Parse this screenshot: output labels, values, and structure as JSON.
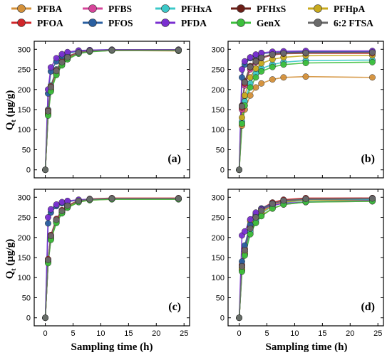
{
  "chart_data": {
    "type": "scatter",
    "xlabel": "Sampling time (h)",
    "ylabel": "Q",
    "ylabel_sub": "t",
    "ylabel_unit": " (µg/g)",
    "xlim": [
      -2,
      26
    ],
    "ylim": [
      -20,
      320
    ],
    "x_ticks": [
      0,
      5,
      10,
      15,
      20,
      25
    ],
    "y_ticks": [
      0,
      50,
      100,
      150,
      200,
      250,
      300
    ],
    "x_tick_labels": [
      "0",
      "5",
      "10",
      "15",
      "20",
      "25"
    ],
    "y_tick_labels": [
      "0",
      "50",
      "100",
      "150",
      "200",
      "250",
      "300"
    ],
    "x": [
      0,
      0.5,
      1,
      2,
      3,
      4,
      6,
      8,
      12,
      24
    ],
    "legend": {
      "placement": "top",
      "entries": [
        {
          "name": "PFBA",
          "color": "#d4913a"
        },
        {
          "name": "PFBS",
          "color": "#d6459a"
        },
        {
          "name": "PFHxA",
          "color": "#3cc8c8"
        },
        {
          "name": "PFHxS",
          "color": "#6b1e16"
        },
        {
          "name": "PFHpA",
          "color": "#c8aa1e"
        },
        {
          "name": "PFOA",
          "color": "#d0262a"
        },
        {
          "name": "PFOS",
          "color": "#2a5fa0"
        },
        {
          "name": "PFDA",
          "color": "#7a2fd0"
        },
        {
          "name": "GenX",
          "color": "#3cbf3c"
        },
        {
          "name": "6:2 FTSA",
          "color": "#6a6a6a"
        }
      ]
    },
    "panels": [
      {
        "label": "(a)",
        "series": [
          {
            "name": "PFBA",
            "values": [
              0,
              140,
              200,
              240,
              265,
              278,
              290,
              295,
              297,
              296
            ]
          },
          {
            "name": "PFBS",
            "values": [
              0,
              145,
              205,
              245,
              268,
              280,
              292,
              296,
              298,
              298
            ]
          },
          {
            "name": "PFHxA",
            "values": [
              0,
              150,
              210,
              250,
              270,
              283,
              293,
              297,
              299,
              299
            ]
          },
          {
            "name": "PFHxS",
            "values": [
              0,
              138,
              198,
              238,
              263,
              277,
              290,
              295,
              297,
              298
            ]
          },
          {
            "name": "PFHpA",
            "values": [
              0,
              142,
              202,
              242,
              266,
              279,
              291,
              295,
              297,
              297
            ]
          },
          {
            "name": "PFOA",
            "values": [
              0,
              148,
              208,
              248,
              270,
              282,
              293,
              297,
              299,
              299
            ]
          },
          {
            "name": "PFOS",
            "values": [
              0,
              190,
              245,
              270,
              283,
              290,
              296,
              298,
              299,
              299
            ]
          },
          {
            "name": "PFDA",
            "values": [
              0,
              200,
              255,
              278,
              288,
              293,
              297,
              298,
              299,
              299
            ]
          },
          {
            "name": "GenX",
            "values": [
              0,
              135,
              195,
              236,
              260,
              275,
              289,
              294,
              297,
              297
            ]
          },
          {
            "name": "6:2 FTSA",
            "values": [
              0,
              146,
              206,
              246,
              268,
              280,
              292,
              296,
              298,
              298
            ]
          }
        ]
      },
      {
        "label": "(b)",
        "series": [
          {
            "name": "PFBA",
            "values": [
              0,
              110,
              150,
              185,
              205,
              215,
              225,
              230,
              232,
              230
            ]
          },
          {
            "name": "PFBS",
            "values": [
              0,
              150,
              210,
              250,
              268,
              278,
              288,
              292,
              294,
              294
            ]
          },
          {
            "name": "PFHxA",
            "values": [
              0,
              120,
              170,
              215,
              240,
              252,
              262,
              268,
              272,
              273
            ]
          },
          {
            "name": "PFHxS",
            "values": [
              0,
              160,
              220,
              258,
              272,
              280,
              288,
              291,
              292,
              292
            ]
          },
          {
            "name": "PFHpA",
            "values": [
              0,
              130,
              185,
              230,
              252,
              265,
              275,
              280,
              284,
              285
            ]
          },
          {
            "name": "PFOA",
            "values": [
              0,
              155,
              215,
              255,
              270,
              278,
              286,
              289,
              290,
              290
            ]
          },
          {
            "name": "PFOS",
            "values": [
              0,
              230,
              262,
              278,
              285,
              289,
              292,
              293,
              294,
              294
            ]
          },
          {
            "name": "PFDA",
            "values": [
              0,
              250,
              270,
              280,
              287,
              291,
              294,
              295,
              296,
              296
            ]
          },
          {
            "name": "GenX",
            "values": [
              0,
              115,
              160,
              205,
              230,
              245,
              256,
              262,
              266,
              268
            ]
          },
          {
            "name": "6:2 FTSA",
            "values": [
              0,
              158,
              218,
              256,
              270,
              279,
              287,
              290,
              291,
              292
            ]
          }
        ]
      },
      {
        "label": "(c)",
        "series": [
          {
            "name": "PFBA",
            "values": [
              0,
              140,
              198,
              240,
              262,
              275,
              288,
              293,
              295,
              295
            ]
          },
          {
            "name": "PFBS",
            "values": [
              0,
              145,
              205,
              245,
              266,
              278,
              290,
              295,
              297,
              297
            ]
          },
          {
            "name": "PFHxA",
            "values": [
              0,
              142,
              202,
              242,
              265,
              278,
              290,
              295,
              297,
              297
            ]
          },
          {
            "name": "PFHxS",
            "values": [
              0,
              138,
              196,
              238,
              262,
              276,
              289,
              294,
              296,
              297
            ]
          },
          {
            "name": "PFHpA",
            "values": [
              0,
              140,
              200,
              240,
              264,
              277,
              290,
              295,
              297,
              296
            ]
          },
          {
            "name": "PFOA",
            "values": [
              0,
              146,
              206,
              246,
              268,
              280,
              292,
              296,
              298,
              298
            ]
          },
          {
            "name": "PFOS",
            "values": [
              0,
              235,
              262,
              278,
              285,
              289,
              293,
              295,
              296,
              296
            ]
          },
          {
            "name": "PFDA",
            "values": [
              0,
              250,
              270,
              282,
              288,
              291,
              294,
              295,
              296,
              296
            ]
          },
          {
            "name": "GenX",
            "values": [
              0,
              136,
              194,
              236,
              260,
              274,
              288,
              293,
              295,
              295
            ]
          },
          {
            "name": "6:2 FTSA",
            "values": [
              0,
              144,
              204,
              244,
              266,
              279,
              291,
              295,
              297,
              297
            ]
          }
        ]
      },
      {
        "label": "(d)",
        "series": [
          {
            "name": "PFBA",
            "values": [
              0,
              118,
              158,
              210,
              238,
              255,
              272,
              282,
              288,
              290
            ]
          },
          {
            "name": "PFBS",
            "values": [
              0,
              125,
              165,
              220,
              248,
              265,
              282,
              290,
              295,
              296
            ]
          },
          {
            "name": "PFHxA",
            "values": [
              0,
              120,
              160,
              215,
              243,
              260,
              278,
              287,
              292,
              294
            ]
          },
          {
            "name": "PFHxS",
            "values": [
              0,
              130,
              170,
              225,
              253,
              270,
              286,
              293,
              297,
              298
            ]
          },
          {
            "name": "PFHpA",
            "values": [
              0,
              122,
              162,
              240,
              250,
              262,
              280,
              288,
              293,
              292
            ]
          },
          {
            "name": "PFOA",
            "values": [
              0,
              132,
              172,
              228,
              256,
              272,
              287,
              294,
              298,
              298
            ]
          },
          {
            "name": "PFOS",
            "values": [
              0,
              140,
              180,
              232,
              258,
              272,
              285,
              291,
              295,
              296
            ]
          },
          {
            "name": "PFDA",
            "values": [
              0,
              205,
              215,
              245,
              262,
              270,
              280,
              285,
              288,
              292
            ]
          },
          {
            "name": "GenX",
            "values": [
              0,
              115,
              155,
              208,
              236,
              253,
              272,
              282,
              288,
              290
            ]
          },
          {
            "name": "6:2 FTSA",
            "values": [
              0,
              128,
              168,
              222,
              250,
              267,
              284,
              292,
              296,
              297
            ]
          }
        ]
      }
    ]
  }
}
